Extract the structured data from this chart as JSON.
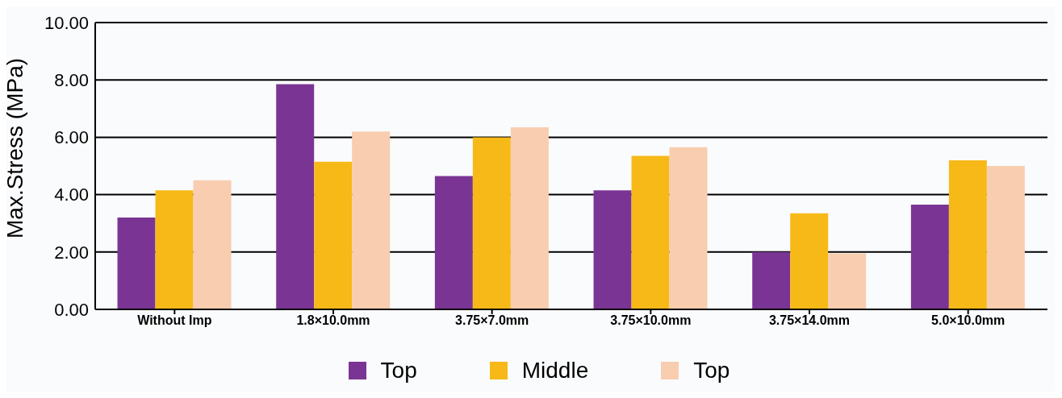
{
  "chart_data": {
    "type": "bar",
    "ylabel": "Max.Stress (MPa)",
    "categories": [
      "Without Imp",
      "1.8×10.0mm",
      "3.75×7.0mm",
      "3.75×10.0mm",
      "3.75×14.0mm",
      "5.0×10.0mm"
    ],
    "series": [
      {
        "name": "Top",
        "color": "#7a3594",
        "values": [
          3.2,
          7.85,
          4.65,
          4.15,
          2.0,
          3.65
        ]
      },
      {
        "name": "Middle",
        "color": "#f7b917",
        "values": [
          4.15,
          5.15,
          6.0,
          5.35,
          3.35,
          5.2
        ]
      },
      {
        "name": "Top",
        "color": "#f8cdb0",
        "values": [
          4.5,
          6.2,
          6.35,
          5.65,
          1.95,
          5.0
        ]
      }
    ],
    "ylim": [
      0,
      10
    ],
    "yticks": [
      {
        "value": 0,
        "label": "0.00"
      },
      {
        "value": 2,
        "label": "2.00"
      },
      {
        "value": 4,
        "label": "4.00"
      },
      {
        "value": 6,
        "label": "6.00"
      },
      {
        "value": 8,
        "label": "8.00"
      },
      {
        "value": 10,
        "label": "10.00"
      }
    ],
    "grid": "y",
    "legend": "bottom"
  }
}
